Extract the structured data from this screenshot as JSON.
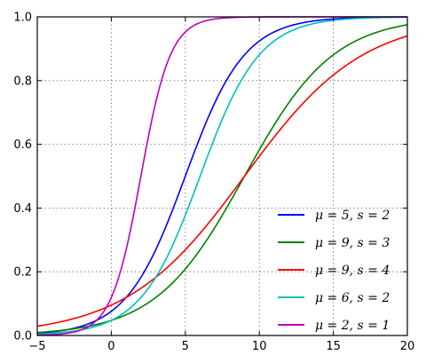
{
  "chart_data": {
    "type": "line",
    "title": "",
    "xlabel": "",
    "ylabel": "",
    "xlim": [
      -5,
      20
    ],
    "ylim": [
      0,
      1
    ],
    "grid": true,
    "legend_position": "bottom-right",
    "x_ticks": [
      -5,
      0,
      5,
      10,
      15,
      20
    ],
    "x_tick_labels": [
      "−5",
      "0",
      "5",
      "10",
      "15",
      "20"
    ],
    "y_ticks": [
      0,
      0.2,
      0.4,
      0.6,
      0.8,
      1.0
    ],
    "y_tick_labels": [
      "0.0",
      "0.2",
      "0.4",
      "0.6",
      "0.8",
      "1.0"
    ],
    "function": "logistic CDF 1/(1+exp(-(x-mu)/s))",
    "series": [
      {
        "name": "μ = 5,  s = 2",
        "mu": 5,
        "s": 2,
        "color": "#0000ff"
      },
      {
        "name": "μ = 9,  s = 3",
        "mu": 9,
        "s": 3,
        "color": "#008000"
      },
      {
        "name": "μ = 9,  s = 4",
        "mu": 9,
        "s": 4,
        "color": "#ff0000"
      },
      {
        "name": "μ = 6,  s = 2",
        "mu": 6,
        "s": 2,
        "color": "#00bfbf"
      },
      {
        "name": "μ = 2,  s = 1",
        "mu": 2,
        "s": 1,
        "color": "#bf00bf"
      }
    ]
  }
}
